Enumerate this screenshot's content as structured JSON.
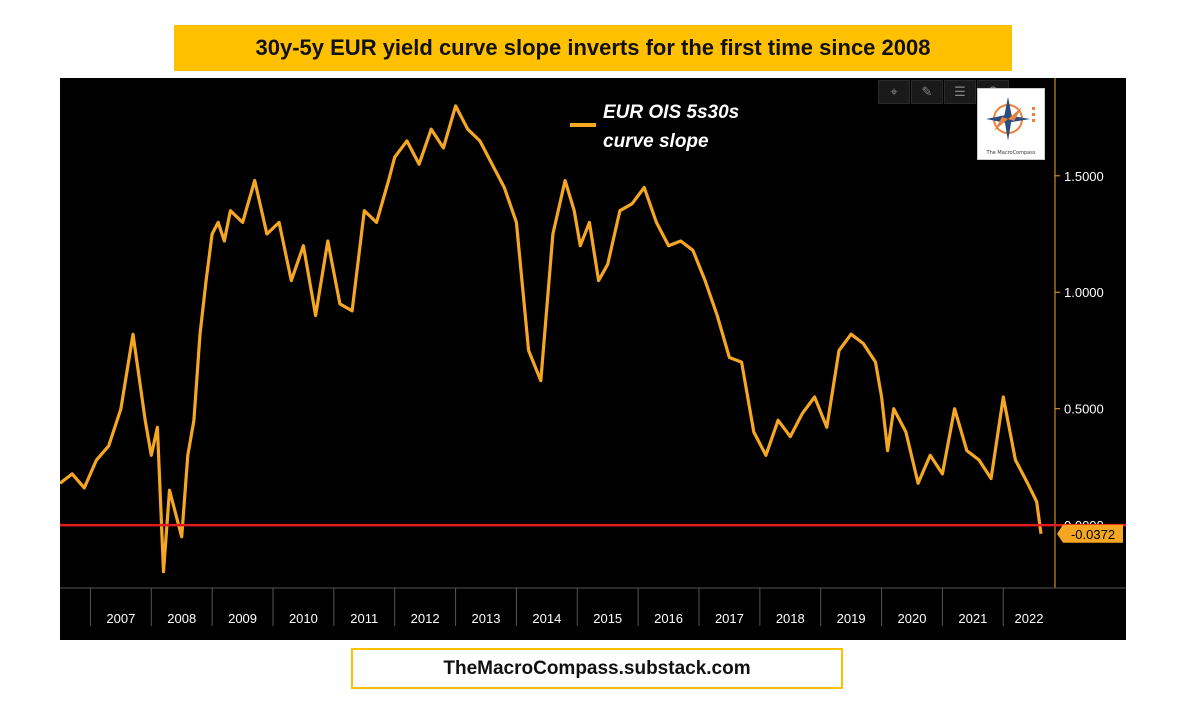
{
  "header": {
    "title": "30y-5y EUR yield curve slope inverts for the first time since 2008"
  },
  "footer": {
    "text": "TheMacroCompass.substack.com"
  },
  "logo": {
    "text": "The MacroCompass"
  },
  "toolbar": {
    "icons": [
      "crosshair-icon",
      "pen-icon",
      "list-icon",
      "search-icon"
    ]
  },
  "colors": {
    "series": "#F5A623",
    "zero_line": "#E21B1B",
    "background": "#000000",
    "accent": "#FFC000"
  },
  "chart_data": {
    "type": "line",
    "legend": {
      "label_line1": "EUR OIS 5s30s",
      "label_line2": "curve slope",
      "position": "top-center"
    },
    "x_ticks": [
      "2007",
      "2008",
      "2009",
      "2010",
      "2011",
      "2012",
      "2013",
      "2014",
      "2015",
      "2016",
      "2017",
      "2018",
      "2019",
      "2020",
      "2021",
      "2022"
    ],
    "y_ticks": [
      {
        "value": 1.5,
        "label": "1.5000"
      },
      {
        "value": 1.0,
        "label": "1.0000"
      },
      {
        "value": 0.5,
        "label": "0.5000"
      },
      {
        "value": 0.0,
        "label": "0.0000"
      }
    ],
    "xlim": [
      2006.5,
      2022.85
    ],
    "ylim": [
      -0.27,
      1.92
    ],
    "last_value": -0.0372,
    "last_value_label": "-0.0372",
    "reference_line": 0.0,
    "series": [
      {
        "name": "EUR OIS 5s30s curve slope",
        "x": [
          2006.5,
          2006.7,
          2006.9,
          2007.1,
          2007.3,
          2007.5,
          2007.7,
          2007.9,
          2008.0,
          2008.1,
          2008.2,
          2008.3,
          2008.4,
          2008.5,
          2008.6,
          2008.7,
          2008.8,
          2008.9,
          2009.0,
          2009.1,
          2009.2,
          2009.3,
          2009.5,
          2009.7,
          2009.9,
          2010.1,
          2010.3,
          2010.5,
          2010.7,
          2010.9,
          2011.1,
          2011.3,
          2011.5,
          2011.7,
          2011.9,
          2012.0,
          2012.2,
          2012.4,
          2012.6,
          2012.8,
          2013.0,
          2013.2,
          2013.4,
          2013.6,
          2013.8,
          2014.0,
          2014.2,
          2014.4,
          2014.6,
          2014.8,
          2014.95,
          2015.05,
          2015.2,
          2015.35,
          2015.5,
          2015.7,
          2015.9,
          2016.1,
          2016.3,
          2016.5,
          2016.7,
          2016.9,
          2017.1,
          2017.3,
          2017.5,
          2017.7,
          2017.9,
          2018.1,
          2018.3,
          2018.5,
          2018.7,
          2018.9,
          2019.1,
          2019.3,
          2019.5,
          2019.7,
          2019.9,
          2020.0,
          2020.1,
          2020.2,
          2020.4,
          2020.6,
          2020.8,
          2021.0,
          2021.2,
          2021.4,
          2021.6,
          2021.8,
          2022.0,
          2022.2,
          2022.4,
          2022.55,
          2022.62
        ],
        "y": [
          0.18,
          0.22,
          0.16,
          0.28,
          0.34,
          0.5,
          0.82,
          0.45,
          0.3,
          0.42,
          -0.2,
          0.15,
          0.05,
          -0.05,
          0.3,
          0.45,
          0.82,
          1.05,
          1.25,
          1.3,
          1.22,
          1.35,
          1.3,
          1.48,
          1.25,
          1.3,
          1.05,
          1.2,
          0.9,
          1.22,
          0.95,
          0.92,
          1.35,
          1.3,
          1.48,
          1.58,
          1.65,
          1.55,
          1.7,
          1.62,
          1.8,
          1.7,
          1.65,
          1.55,
          1.45,
          1.3,
          0.75,
          0.62,
          1.25,
          1.48,
          1.35,
          1.2,
          1.3,
          1.05,
          1.12,
          1.35,
          1.38,
          1.45,
          1.3,
          1.2,
          1.22,
          1.18,
          1.05,
          0.9,
          0.72,
          0.7,
          0.4,
          0.3,
          0.45,
          0.38,
          0.48,
          0.55,
          0.42,
          0.75,
          0.82,
          0.78,
          0.7,
          0.55,
          0.32,
          0.5,
          0.4,
          0.18,
          0.3,
          0.22,
          0.5,
          0.32,
          0.28,
          0.2,
          0.55,
          0.28,
          0.18,
          0.1,
          -0.0372
        ]
      }
    ]
  }
}
